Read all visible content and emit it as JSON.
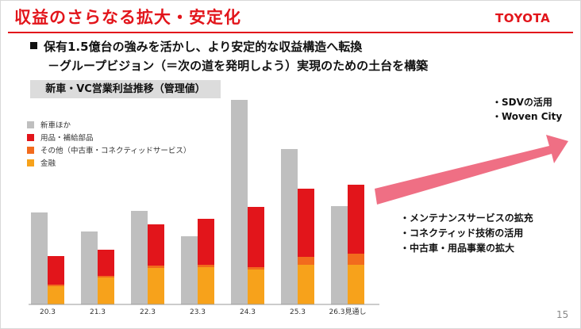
{
  "header": {
    "title": "収益のさらなる拡大・安定化",
    "logo_text": "TOYOTA",
    "accent_color": "#e2151b"
  },
  "bullets": {
    "main": "保有1.5億台の強みを活かし、より安定的な収益構造へ転換",
    "sub": "－グループビジョン（＝次の道を発明しよう）実現のための土台を構築"
  },
  "chart_label": "新車・VC営業利益推移（管理値）",
  "legend": [
    {
      "label": "新車ほか",
      "color": "#bfbfbf"
    },
    {
      "label": "用品・補給部品",
      "color": "#e2151b"
    },
    {
      "label": "その他（中古車・コネクティッドサービス）",
      "color": "#f26b1d"
    },
    {
      "label": "金融",
      "color": "#f7a21b"
    }
  ],
  "notes": {
    "top": [
      "・SDVの活用",
      "・Woven City"
    ],
    "bottom": [
      "・メンテナンスサービスの拡充",
      "・コネクティッド技術の活用",
      "・中古車・用品事業の拡大"
    ]
  },
  "arrow_color": "#ef6f84",
  "page_number": "15",
  "chart_data": {
    "type": "bar",
    "categories": [
      "20.3",
      "21.3",
      "22.3",
      "23.3",
      "24.3",
      "25.3",
      "26.3見通し"
    ],
    "series": [
      {
        "name": "新車ほか",
        "values": [
          116,
          92,
          118,
          86,
          258,
          196,
          124
        ]
      },
      {
        "name": "用品・補給部品",
        "values": [
          36,
          33,
          52,
          58,
          76,
          86,
          87
        ]
      },
      {
        "name": "その他（中古車・コネクティッドサービス）",
        "values": [
          2,
          2,
          3,
          3,
          3,
          10,
          14
        ]
      },
      {
        "name": "金融",
        "values": [
          23,
          34,
          46,
          47,
          44,
          50,
          50
        ]
      }
    ],
    "grid": false
  }
}
